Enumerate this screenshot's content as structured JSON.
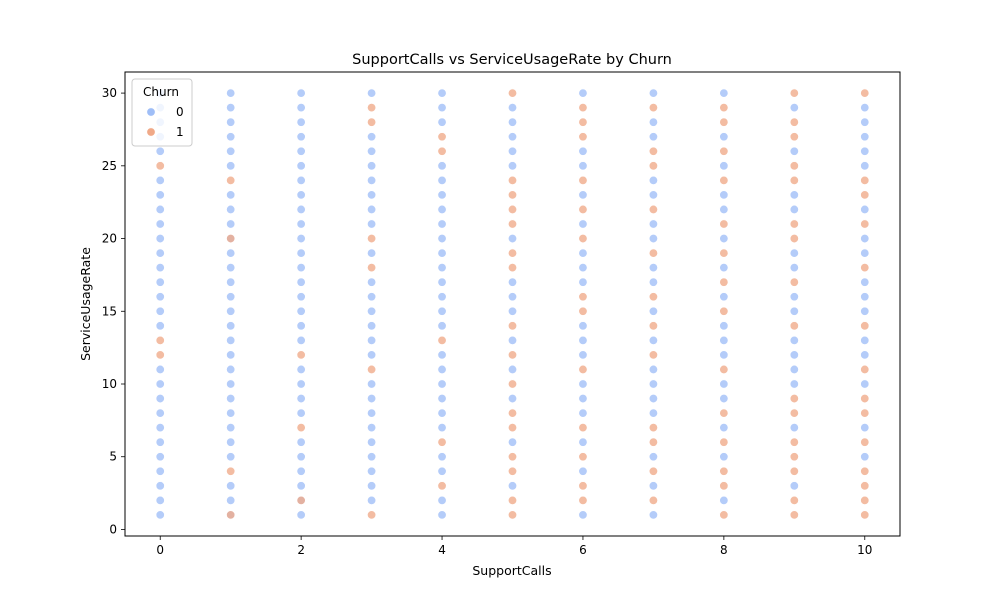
{
  "chart_data": {
    "type": "scatter",
    "title": "SupportCalls vs ServiceUsageRate by Churn",
    "xlabel": "SupportCalls",
    "ylabel": "ServiceUsageRate",
    "xlim": [
      -0.5,
      10.5
    ],
    "ylim": [
      -0.45,
      31.45
    ],
    "xticks": [
      0,
      2,
      4,
      6,
      8,
      10
    ],
    "yticks": [
      0,
      5,
      10,
      15,
      20,
      25,
      30
    ],
    "grid": false,
    "legend": {
      "title": "Churn",
      "placement": "top-left",
      "entries": [
        {
          "label": "0",
          "color": "#9fbef7"
        },
        {
          "label": "1",
          "color": "#f0a988"
        }
      ]
    },
    "series": [
      {
        "name": "0",
        "color": "#9fbef7",
        "points_by_x": {
          "0": [
            1,
            2,
            3,
            4,
            5,
            6,
            7,
            8,
            9,
            10,
            11,
            14,
            15,
            16,
            17,
            18,
            19,
            20,
            21,
            22,
            23,
            24,
            26,
            27,
            28,
            29,
            30
          ],
          "1": [
            1,
            2,
            3,
            5,
            6,
            7,
            8,
            9,
            10,
            11,
            12,
            13,
            14,
            15,
            16,
            17,
            18,
            19,
            20,
            21,
            22,
            23,
            25,
            26,
            27,
            28,
            29,
            30
          ],
          "2": [
            1,
            2,
            3,
            4,
            5,
            6,
            8,
            9,
            10,
            11,
            13,
            14,
            15,
            16,
            17,
            18,
            19,
            20,
            21,
            22,
            23,
            24,
            25,
            26,
            27,
            28,
            29,
            30
          ],
          "3": [
            2,
            3,
            4,
            5,
            6,
            7,
            8,
            9,
            10,
            12,
            13,
            14,
            15,
            16,
            17,
            19,
            21,
            22,
            23,
            24,
            25,
            26,
            27,
            30
          ],
          "4": [
            1,
            2,
            4,
            5,
            7,
            8,
            9,
            10,
            11,
            12,
            14,
            15,
            16,
            17,
            18,
            19,
            20,
            21,
            22,
            23,
            24,
            25,
            28,
            29,
            30
          ],
          "5": [
            3,
            6,
            9,
            11,
            13,
            15,
            16,
            17,
            20,
            25,
            26,
            27,
            28,
            29
          ],
          "6": [
            1,
            4,
            6,
            8,
            9,
            10,
            12,
            13,
            14,
            17,
            18,
            19,
            21,
            23,
            25,
            26,
            30
          ],
          "7": [
            1,
            3,
            5,
            8,
            9,
            10,
            11,
            13,
            15,
            17,
            18,
            20,
            21,
            23,
            24,
            27,
            28,
            30
          ],
          "8": [
            2,
            5,
            7,
            9,
            10,
            12,
            13,
            14,
            16,
            18,
            20,
            22,
            23,
            25,
            27,
            30
          ],
          "9": [
            3,
            7,
            10,
            11,
            12,
            13,
            15,
            16,
            18,
            19,
            22,
            23,
            26,
            29
          ],
          "10": [
            5,
            7,
            10,
            12,
            13,
            15,
            16,
            17,
            19,
            20,
            22,
            25,
            26,
            27,
            28,
            29
          ]
        }
      },
      {
        "name": "1",
        "color": "#f0a988",
        "points_by_x": {
          "0": [
            12,
            13,
            25
          ],
          "1": [
            1,
            4,
            20,
            24
          ],
          "2": [
            2,
            7,
            12
          ],
          "3": [
            1,
            11,
            18,
            20,
            28,
            29
          ],
          "4": [
            3,
            6,
            13,
            26,
            27
          ],
          "5": [
            1,
            2,
            4,
            5,
            7,
            8,
            10,
            12,
            14,
            18,
            19,
            21,
            22,
            23,
            24,
            30
          ],
          "6": [
            2,
            3,
            5,
            7,
            11,
            15,
            16,
            20,
            22,
            24,
            27,
            28,
            29
          ],
          "7": [
            2,
            4,
            6,
            7,
            12,
            14,
            16,
            19,
            22,
            25,
            26,
            29
          ],
          "8": [
            1,
            3,
            4,
            6,
            8,
            11,
            15,
            17,
            19,
            21,
            24,
            26,
            28,
            29
          ],
          "9": [
            1,
            2,
            4,
            5,
            6,
            8,
            9,
            14,
            17,
            20,
            21,
            24,
            25,
            27,
            28,
            30
          ],
          "10": [
            1,
            2,
            3,
            4,
            6,
            8,
            9,
            11,
            14,
            18,
            21,
            23,
            24,
            30
          ]
        }
      }
    ]
  }
}
